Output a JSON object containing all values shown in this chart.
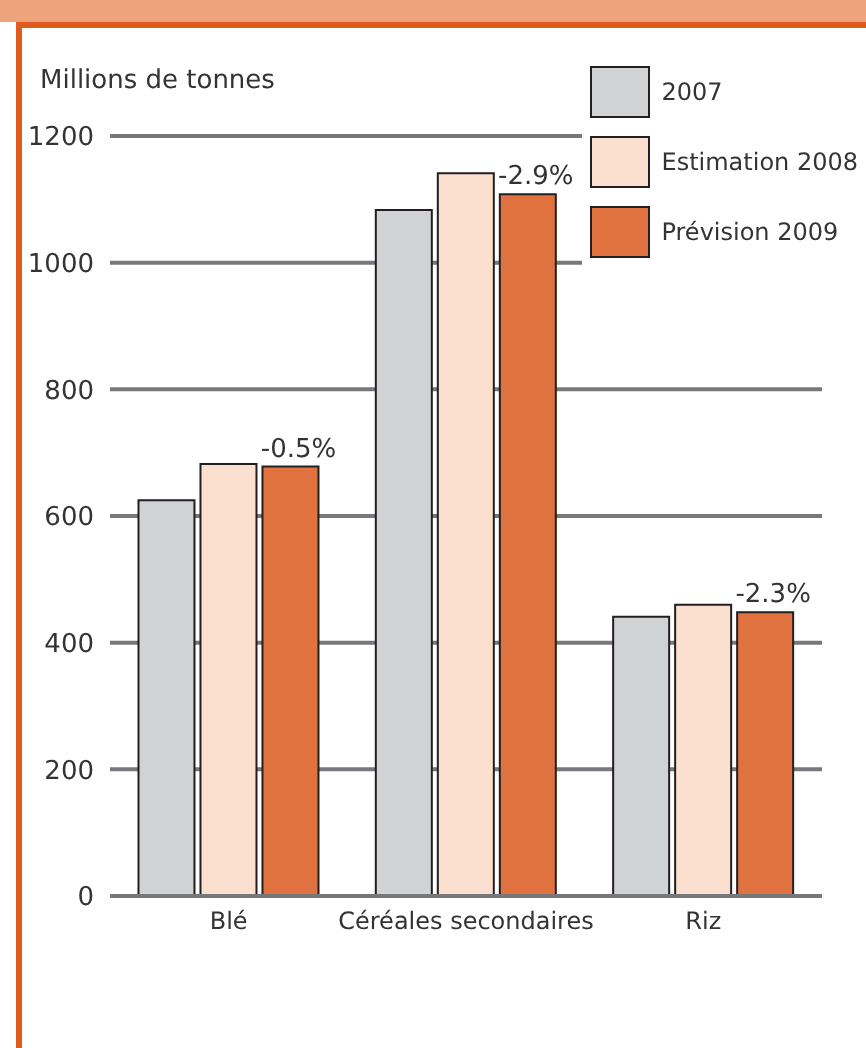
{
  "chart_data": {
    "type": "bar",
    "ylabel": "Millions de tonnes",
    "categories": [
      "Blé",
      "Céréales secondaires",
      "Riz"
    ],
    "series": [
      {
        "name": "2007",
        "color": "#d1d2d4",
        "values": [
          625,
          1083,
          441
        ]
      },
      {
        "name": "Estimation 2008",
        "color": "#fbe0d0",
        "values": [
          682,
          1141,
          460
        ]
      },
      {
        "name": "Prévision 2009",
        "color": "#e07240",
        "values": [
          678,
          1108,
          448
        ]
      }
    ],
    "ylim": [
      0,
      1200
    ],
    "yticks": [
      0,
      200,
      400,
      600,
      800,
      1000,
      1200
    ],
    "grid": "y",
    "legend": "top right",
    "annotations": [
      "-0.5%",
      "-2.9%",
      "-2.3%"
    ]
  }
}
